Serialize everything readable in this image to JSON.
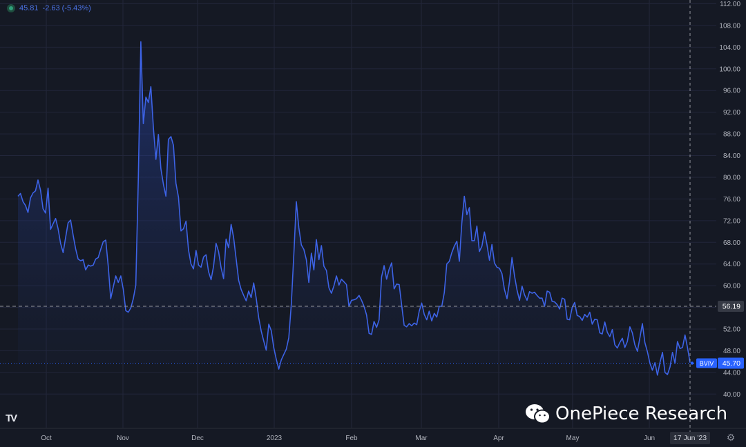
{
  "legend": {
    "last": "45.81",
    "change": "-2.63 (-5.43%)"
  },
  "colors": {
    "line": "#3d63e6",
    "background": "#151924",
    "grid": "#22263a",
    "marker": "#2962ff"
  },
  "icons": [
    "tradingview-logo-icon",
    "wechat-icon",
    "settings-icon"
  ],
  "tradingview_logo_text": "TV",
  "watermark": "OnePiece Research",
  "crosshair_date": "17 Jun '23",
  "ref_price_label": "56.19",
  "series_tag": {
    "name": "BVIV",
    "value": "45.70"
  },
  "settings_glyph": "⚙",
  "chart_data": {
    "type": "line",
    "title": "",
    "xlabel": "",
    "ylabel": "",
    "ylim": [
      38,
      112
    ],
    "x_ticks": [
      "Oct",
      "Nov",
      "Dec",
      "2023",
      "Feb",
      "Mar",
      "Apr",
      "May",
      "Jun"
    ],
    "y_ticks": [
      "40.00",
      "44.00",
      "48.00",
      "52.00",
      "56.00",
      "60.00",
      "64.00",
      "68.00",
      "72.00",
      "76.00",
      "80.00",
      "84.00",
      "88.00",
      "92.00",
      "96.00",
      "100.00",
      "104.00",
      "108.00",
      "112.00"
    ],
    "reference_line": 56.19,
    "last_value_line": 45.7,
    "grid": true,
    "series": [
      {
        "name": "BVIV",
        "values": [
          76.5,
          77.0,
          75.5,
          74.8,
          73.5,
          76.2,
          77.1,
          77.5,
          79.5,
          77.6,
          74.2,
          73.4,
          78.0,
          70.4,
          71.4,
          72.4,
          70.5,
          67.8,
          66.1,
          68.9,
          71.6,
          72.1,
          69.3,
          66.8,
          64.9,
          64.6,
          64.8,
          62.9,
          63.8,
          63.6,
          63.8,
          64.9,
          65.2,
          66.7,
          68.1,
          68.4,
          63.6,
          57.6,
          59.8,
          61.8,
          60.6,
          61.8,
          59.3,
          55.4,
          55.1,
          55.9,
          57.6,
          60.1,
          80.1,
          105.0,
          89.9,
          94.8,
          93.8,
          96.7,
          89.1,
          83.3,
          87.9,
          81.6,
          78.7,
          76.5,
          87.0,
          87.5,
          85.9,
          78.9,
          76.3,
          70.1,
          70.5,
          71.9,
          66.6,
          64.0,
          63.1,
          66.5,
          63.8,
          63.4,
          65.3,
          65.7,
          62.6,
          61.1,
          63.6,
          67.8,
          66.3,
          63.3,
          61.3,
          68.6,
          67.0,
          71.3,
          68.9,
          64.9,
          61.0,
          59.3,
          58.2,
          57.2,
          59.0,
          57.8,
          60.5,
          57.7,
          54.1,
          51.6,
          49.8,
          48.1,
          52.9,
          51.7,
          48.6,
          46.4,
          44.6,
          46.3,
          47.3,
          48.3,
          50.4,
          56.5,
          65.8,
          75.5,
          70.7,
          67.5,
          66.7,
          64.8,
          60.6,
          66.0,
          62.9,
          68.5,
          64.8,
          67.4,
          63.6,
          62.8,
          59.6,
          58.6,
          60.0,
          61.8,
          60.1,
          61.2,
          60.7,
          60.2,
          56.2,
          57.3,
          57.4,
          57.6,
          58.2,
          57.3,
          56.2,
          54.6,
          51.2,
          51.0,
          53.4,
          52.3,
          53.7,
          61.6,
          63.7,
          61.2,
          63.0,
          64.2,
          59.4,
          60.3,
          60.2,
          56.4,
          52.7,
          52.4,
          53.0,
          52.6,
          53.1,
          52.8,
          55.3,
          56.8,
          54.7,
          53.7,
          55.3,
          53.5,
          54.9,
          54.2,
          56.2,
          56.2,
          58.7,
          64.0,
          64.5,
          66.1,
          67.3,
          68.2,
          64.5,
          71.6,
          76.5,
          73.1,
          74.4,
          68.3,
          68.3,
          71.0,
          66.3,
          67.3,
          69.9,
          67.6,
          64.7,
          67.6,
          64.2,
          63.4,
          63.2,
          62.2,
          59.3,
          57.6,
          60.7,
          65.2,
          61.8,
          59.2,
          57.3,
          59.9,
          58.3,
          57.3,
          58.9,
          58.6,
          58.8,
          58.2,
          57.7,
          57.7,
          56.2,
          59.0,
          58.8,
          57.1,
          57.0,
          56.5,
          55.7,
          57.7,
          57.5,
          53.8,
          53.7,
          56.0,
          56.9,
          54.5,
          54.3,
          53.6,
          54.7,
          54.2,
          55.1,
          52.9,
          53.8,
          53.7,
          51.3,
          51.1,
          53.3,
          51.4,
          50.6,
          51.9,
          49.1,
          48.5,
          49.5,
          50.3,
          48.6,
          49.7,
          52.4,
          51.3,
          49.1,
          47.9,
          50.4,
          53.0,
          49.5,
          47.8,
          45.7,
          44.4,
          45.8,
          43.5,
          45.8,
          47.7,
          44.0,
          43.6,
          45.0,
          47.7,
          45.7,
          49.7,
          48.4,
          48.6,
          50.9,
          48.5,
          45.8
        ]
      }
    ]
  }
}
